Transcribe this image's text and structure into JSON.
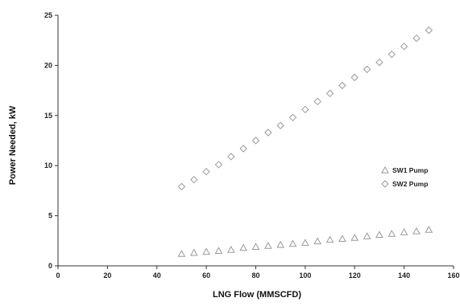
{
  "chart_data": {
    "type": "scatter",
    "title": "",
    "xlabel": "LNG Flow (MMSCFD)",
    "ylabel": "Power Needed, kW",
    "xlim": [
      0,
      160
    ],
    "ylim": [
      0,
      25
    ],
    "xticks": [
      0,
      20,
      40,
      60,
      80,
      100,
      120,
      140,
      160
    ],
    "yticks": [
      0,
      5,
      10,
      15,
      20,
      25
    ],
    "x_tick_labels": [
      "0",
      "20",
      "40",
      "60",
      "80",
      "100",
      "120",
      "140",
      "160"
    ],
    "y_tick_labels": [
      "0",
      "5",
      "10",
      "15",
      "20",
      "25"
    ],
    "grid": false,
    "legend_position": "right",
    "x": [
      50,
      55,
      60,
      65,
      70,
      75,
      80,
      85,
      90,
      95,
      100,
      105,
      110,
      115,
      120,
      125,
      130,
      135,
      140,
      145,
      150
    ],
    "series": [
      {
        "name": "SW1 Pump",
        "marker": "triangle",
        "color": "#9a9a9a",
        "values": [
          1.2,
          1.3,
          1.4,
          1.5,
          1.6,
          1.8,
          1.9,
          2.0,
          2.1,
          2.2,
          2.3,
          2.45,
          2.6,
          2.7,
          2.8,
          2.95,
          3.1,
          3.2,
          3.35,
          3.45,
          3.6
        ]
      },
      {
        "name": "SW2 Pump",
        "marker": "diamond",
        "color": "#9a9a9a",
        "values": [
          7.9,
          8.6,
          9.4,
          10.1,
          10.9,
          11.7,
          12.5,
          13.3,
          14.0,
          14.8,
          15.6,
          16.4,
          17.2,
          18.0,
          18.8,
          19.6,
          20.3,
          21.1,
          21.9,
          22.7,
          23.5
        ]
      }
    ]
  }
}
